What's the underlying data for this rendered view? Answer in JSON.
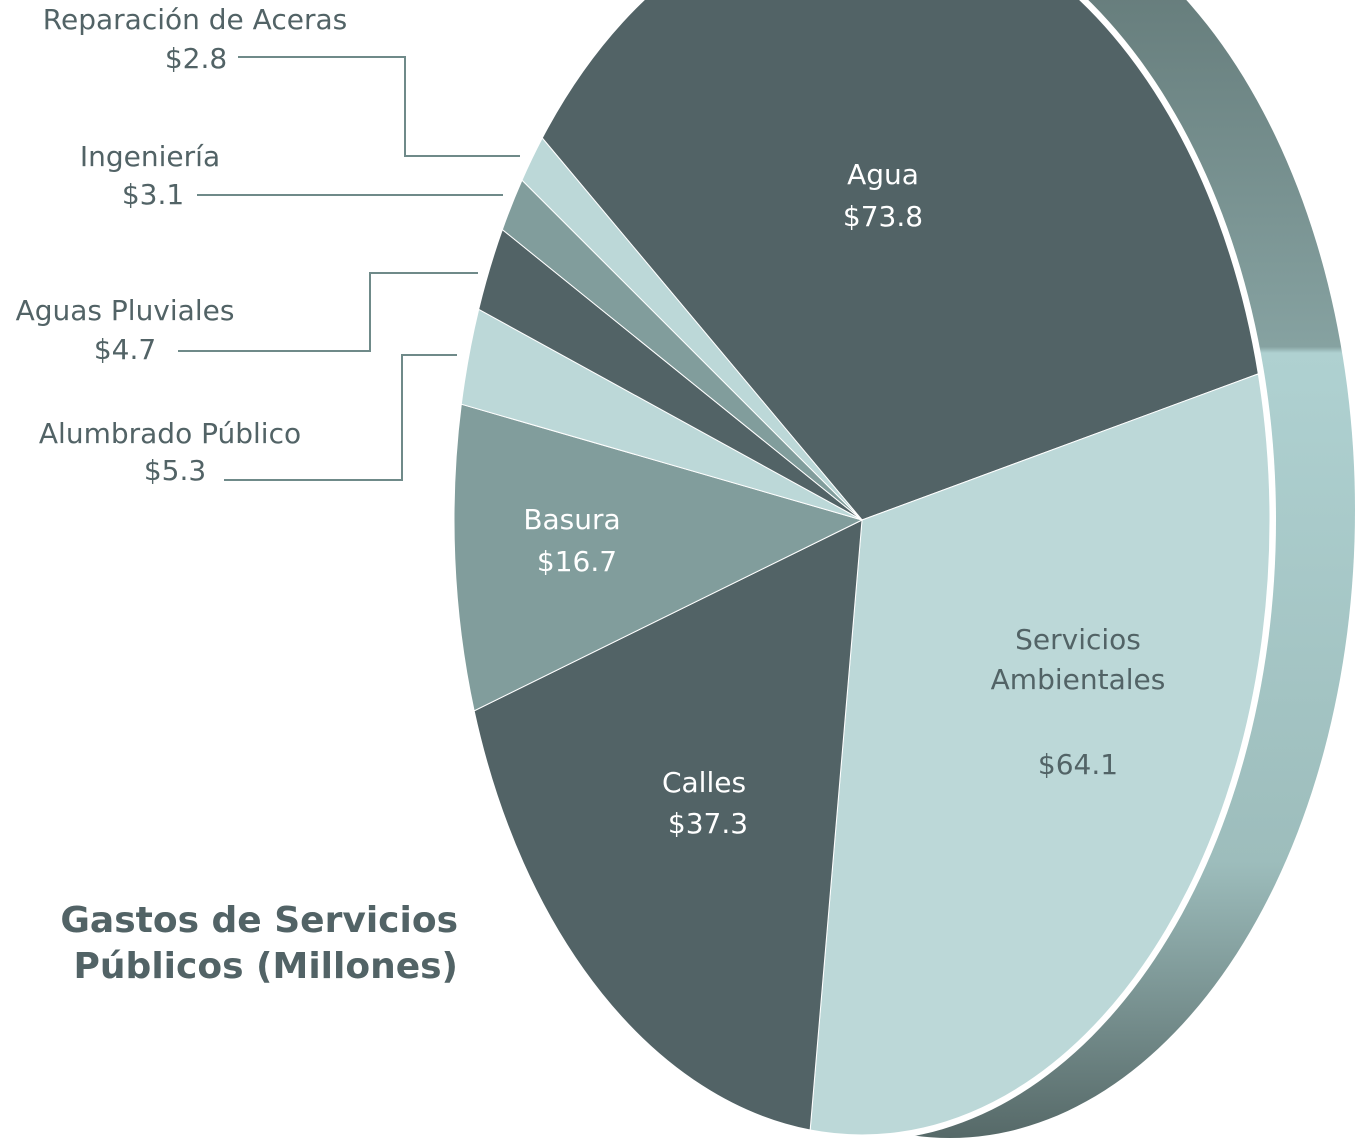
{
  "chart_data": {
    "type": "pie",
    "title": "Gastos de Servicios Públicos (Millones)",
    "categories": [
      "Agua",
      "Servicios Ambientales",
      "Calles",
      "Basura",
      "Alumbrado Público",
      "Aguas Pluviales",
      "Ingeniería",
      "Reparación de Aceras"
    ],
    "values": [
      73.8,
      64.1,
      37.3,
      16.7,
      5.3,
      4.7,
      3.1,
      2.8
    ],
    "value_labels": [
      "$73.8",
      "$64.1",
      "$37.3",
      "$16.7",
      "$5.3",
      "$4.7",
      "$3.1",
      "$2.8"
    ],
    "colors": [
      "#526366",
      "#bcd8d8",
      "#526366",
      "#819d9c",
      "#bcd8d8",
      "#526366",
      "#819d9c",
      "#bcd8d8"
    ]
  }
}
